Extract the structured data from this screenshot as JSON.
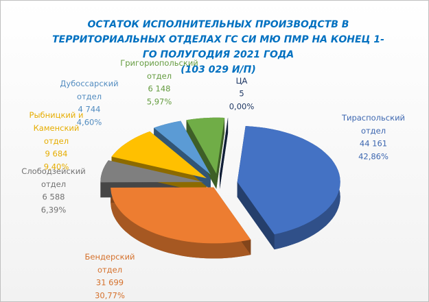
{
  "chart_data": {
    "type": "pie",
    "title": [
      "ОСТАТОК ИСПОЛНИТЕЛЬНЫХ ПРОИЗВОДСТВ В",
      "ТЕРРИТОРИАЛЬНЫХ ОТДЕЛАХ ГС СИ МЮ ПМР НА КОНЕЦ 1-",
      "ГО ПОЛУГОДИЯ 2021 ГОДА"
    ],
    "subtitle": "(103 029 И/П)",
    "categories": [
      "Тираспольский отдел",
      "Бендерский отдел",
      "Слободзейский отдел",
      "Рыбницкий и Каменский отдел",
      "Дубоссарский отдел",
      "Григориопольский отдел",
      "ЦА"
    ],
    "values": [
      44161,
      31699,
      6588,
      9684,
      4744,
      6148,
      5
    ],
    "value_labels": [
      "44 161",
      "31 699",
      "6 588",
      "9 684",
      "4 744",
      "6 148",
      "5"
    ],
    "percentages": [
      42.86,
      30.77,
      6.39,
      9.4,
      4.6,
      5.97,
      0.0
    ],
    "percentage_labels": [
      "42,86%",
      "30,77%",
      "6,39%",
      "9,40%",
      "4,60%",
      "5,97%",
      "0,00%"
    ],
    "colors": [
      "#4472c4",
      "#ed7d31",
      "#7f7f7f",
      "#ffc000",
      "#5b9bd5",
      "#70ad47",
      "#1f3864"
    ]
  }
}
